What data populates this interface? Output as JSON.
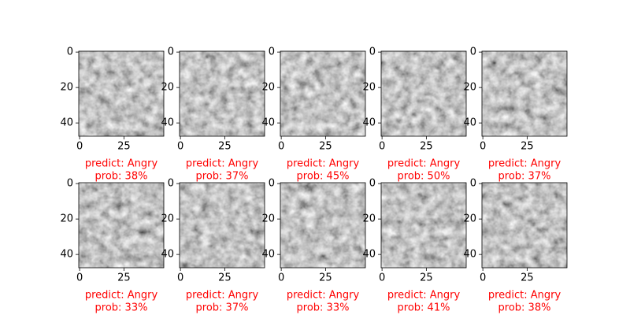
{
  "chart_data": [
    {
      "type": "image",
      "xlim": [
        -0.5,
        47.5
      ],
      "ylim": [
        47.5,
        -0.5
      ],
      "xticks": [
        0,
        25
      ],
      "yticks": [
        0,
        20,
        40
      ],
      "cmap": "gray",
      "label_color": "#ff0000",
      "xlabel": [
        "predict: Angry",
        "prob: 38%"
      ]
    },
    {
      "type": "image",
      "xlim": [
        -0.5,
        47.5
      ],
      "ylim": [
        47.5,
        -0.5
      ],
      "xticks": [
        0,
        25
      ],
      "yticks": [
        0,
        20,
        40
      ],
      "cmap": "gray",
      "label_color": "#ff0000",
      "xlabel": [
        "predict: Angry",
        "prob: 37%"
      ]
    },
    {
      "type": "image",
      "xlim": [
        -0.5,
        47.5
      ],
      "ylim": [
        47.5,
        -0.5
      ],
      "xticks": [
        0,
        25
      ],
      "yticks": [
        0,
        20,
        40
      ],
      "cmap": "gray",
      "label_color": "#ff0000",
      "xlabel": [
        "predict: Angry",
        "prob: 45%"
      ]
    },
    {
      "type": "image",
      "xlim": [
        -0.5,
        47.5
      ],
      "ylim": [
        47.5,
        -0.5
      ],
      "xticks": [
        0,
        25
      ],
      "yticks": [
        0,
        20,
        40
      ],
      "cmap": "gray",
      "label_color": "#ff0000",
      "xlabel": [
        "predict: Angry",
        "prob: 50%"
      ]
    },
    {
      "type": "image",
      "xlim": [
        -0.5,
        47.5
      ],
      "ylim": [
        47.5,
        -0.5
      ],
      "xticks": [
        0,
        25
      ],
      "yticks": [
        0,
        20,
        40
      ],
      "cmap": "gray",
      "label_color": "#ff0000",
      "xlabel": [
        "predict: Angry",
        "prob: 37%"
      ]
    },
    {
      "type": "image",
      "xlim": [
        -0.5,
        47.5
      ],
      "ylim": [
        47.5,
        -0.5
      ],
      "xticks": [
        0,
        25
      ],
      "yticks": [
        0,
        20,
        40
      ],
      "cmap": "gray",
      "label_color": "#ff0000",
      "xlabel": [
        "predict: Angry",
        "prob: 33%"
      ]
    },
    {
      "type": "image",
      "xlim": [
        -0.5,
        47.5
      ],
      "ylim": [
        47.5,
        -0.5
      ],
      "xticks": [
        0,
        25
      ],
      "yticks": [
        0,
        20,
        40
      ],
      "cmap": "gray",
      "label_color": "#ff0000",
      "xlabel": [
        "predict: Angry",
        "prob: 37%"
      ]
    },
    {
      "type": "image",
      "xlim": [
        -0.5,
        47.5
      ],
      "ylim": [
        47.5,
        -0.5
      ],
      "xticks": [
        0,
        25
      ],
      "yticks": [
        0,
        20,
        40
      ],
      "cmap": "gray",
      "label_color": "#ff0000",
      "xlabel": [
        "predict: Angry",
        "prob: 33%"
      ]
    },
    {
      "type": "image",
      "xlim": [
        -0.5,
        47.5
      ],
      "ylim": [
        47.5,
        -0.5
      ],
      "xticks": [
        0,
        25
      ],
      "yticks": [
        0,
        20,
        40
      ],
      "cmap": "gray",
      "label_color": "#ff0000",
      "xlabel": [
        "predict: Angry",
        "prob: 41%"
      ]
    },
    {
      "type": "image",
      "xlim": [
        -0.5,
        47.5
      ],
      "ylim": [
        47.5,
        -0.5
      ],
      "xticks": [
        0,
        25
      ],
      "yticks": [
        0,
        20,
        40
      ],
      "cmap": "gray",
      "label_color": "#ff0000",
      "xlabel": [
        "predict: Angry",
        "prob: 38%"
      ]
    }
  ]
}
